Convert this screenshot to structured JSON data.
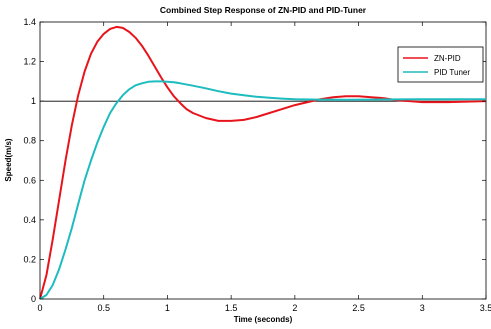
{
  "chart_data": {
    "type": "line",
    "title": "Combined Step Response of ZN-PID and PID-Tuner",
    "xlabel": "Time (seconds)",
    "ylabel": "Speed(m/s)",
    "xlim": [
      0,
      3.5
    ],
    "ylim": [
      0,
      1.4
    ],
    "xticks": [
      "0",
      "0.5",
      "1",
      "1.5",
      "2",
      "2.5",
      "3",
      "3.5"
    ],
    "yticks": [
      "0",
      "0.2",
      "0.4",
      "0.6",
      "0.8",
      "1",
      "1.2",
      "1.4"
    ],
    "grid": false,
    "legend_position": "top-right",
    "reference_line": {
      "y": 1,
      "color": "#000000"
    },
    "series": [
      {
        "name": "ZN-PID",
        "color": "#e8141b",
        "x": [
          0,
          0.05,
          0.1,
          0.15,
          0.2,
          0.25,
          0.3,
          0.35,
          0.4,
          0.45,
          0.5,
          0.55,
          0.6,
          0.65,
          0.7,
          0.75,
          0.8,
          0.85,
          0.9,
          0.95,
          1.0,
          1.05,
          1.1,
          1.15,
          1.2,
          1.3,
          1.4,
          1.5,
          1.6,
          1.7,
          1.8,
          1.9,
          2.0,
          2.1,
          2.2,
          2.3,
          2.4,
          2.5,
          2.6,
          2.7,
          2.8,
          2.9,
          3.0,
          3.2,
          3.5
        ],
        "y": [
          0,
          0.12,
          0.3,
          0.5,
          0.7,
          0.88,
          1.03,
          1.15,
          1.24,
          1.3,
          1.34,
          1.365,
          1.375,
          1.37,
          1.35,
          1.32,
          1.28,
          1.23,
          1.175,
          1.12,
          1.07,
          1.025,
          0.99,
          0.96,
          0.94,
          0.915,
          0.9,
          0.9,
          0.905,
          0.92,
          0.94,
          0.96,
          0.98,
          0.995,
          1.01,
          1.02,
          1.025,
          1.025,
          1.02,
          1.015,
          1.005,
          1.0,
          0.995,
          0.995,
          1.0
        ]
      },
      {
        "name": "PID Tuner",
        "color": "#1ebcbe",
        "x": [
          0,
          0.05,
          0.1,
          0.15,
          0.2,
          0.25,
          0.3,
          0.35,
          0.4,
          0.45,
          0.5,
          0.55,
          0.6,
          0.65,
          0.7,
          0.75,
          0.8,
          0.85,
          0.9,
          0.95,
          1.0,
          1.05,
          1.1,
          1.2,
          1.3,
          1.4,
          1.5,
          1.6,
          1.7,
          1.8,
          1.9,
          2.0,
          2.2,
          2.4,
          2.6,
          2.8,
          3.0,
          3.2,
          3.5
        ],
        "y": [
          0,
          0.02,
          0.07,
          0.15,
          0.25,
          0.36,
          0.48,
          0.6,
          0.7,
          0.79,
          0.87,
          0.94,
          0.99,
          1.03,
          1.06,
          1.08,
          1.09,
          1.098,
          1.1,
          1.1,
          1.098,
          1.095,
          1.09,
          1.078,
          1.065,
          1.05,
          1.038,
          1.03,
          1.022,
          1.017,
          1.013,
          1.01,
          1.008,
          1.007,
          1.008,
          1.009,
          1.01,
          1.01,
          1.01
        ]
      }
    ]
  }
}
